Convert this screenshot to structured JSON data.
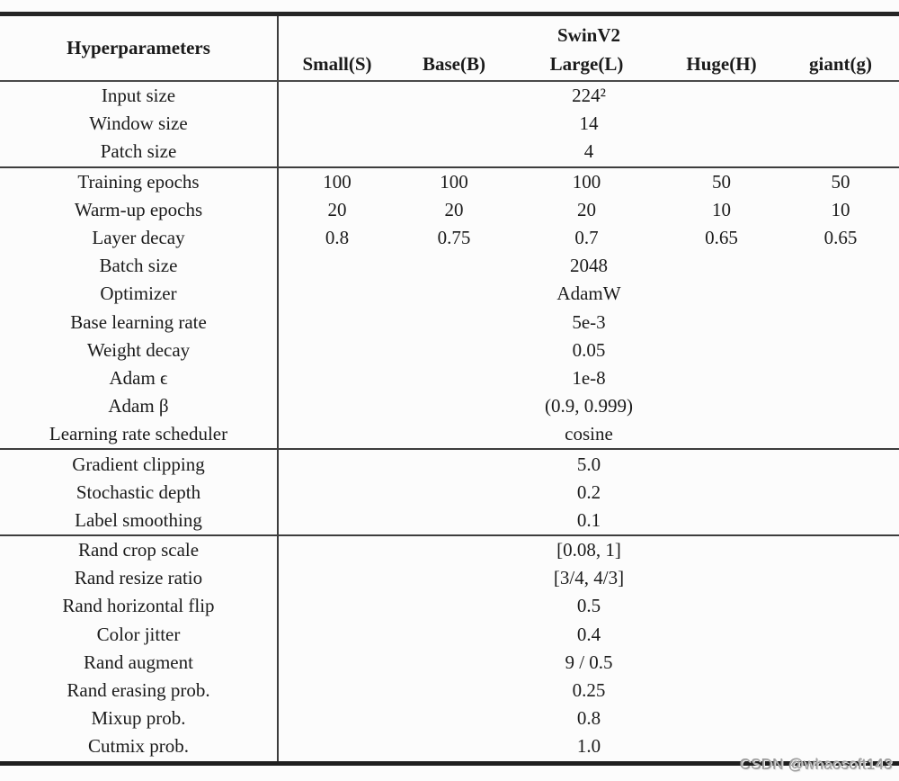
{
  "table": {
    "header": {
      "col0": "Hyperparameters",
      "group": "SwinV2",
      "columns": [
        "Small(S)",
        "Base(B)",
        "Large(L)",
        "Huge(H)",
        "giant(g)"
      ]
    },
    "sections": [
      {
        "rows": [
          {
            "label": "Input size",
            "span": "224²"
          },
          {
            "label": "Window size",
            "span": "14"
          },
          {
            "label": "Patch size",
            "span": "4"
          }
        ]
      },
      {
        "rows": [
          {
            "label": "Training epochs",
            "values": [
              "100",
              "100",
              "100",
              "50",
              "50"
            ]
          },
          {
            "label": "Warm-up epochs",
            "values": [
              "20",
              "20",
              "20",
              "10",
              "10"
            ]
          },
          {
            "label": "Layer decay",
            "values": [
              "0.8",
              "0.75",
              "0.7",
              "0.65",
              "0.65"
            ]
          },
          {
            "label": "Batch size",
            "span": "2048"
          },
          {
            "label": "Optimizer",
            "span": "AdamW"
          },
          {
            "label": "Base learning rate",
            "span": "5e-3"
          },
          {
            "label": "Weight decay",
            "span": "0.05"
          },
          {
            "label": "Adam ϵ",
            "span": "1e-8"
          },
          {
            "label": "Adam β",
            "span": "(0.9, 0.999)"
          },
          {
            "label": "Learning rate scheduler",
            "span": "cosine"
          }
        ]
      },
      {
        "rows": [
          {
            "label": "Gradient clipping",
            "span": "5.0"
          },
          {
            "label": "Stochastic depth",
            "span": "0.2"
          },
          {
            "label": "Label smoothing",
            "span": "0.1"
          }
        ]
      },
      {
        "rows": [
          {
            "label": "Rand crop scale",
            "span": "[0.08, 1]"
          },
          {
            "label": "Rand resize ratio",
            "span": "[3/4, 4/3]"
          },
          {
            "label": "Rand horizontal flip",
            "span": "0.5"
          },
          {
            "label": "Color jitter",
            "span": "0.4"
          },
          {
            "label": "Rand augment",
            "span": "9 / 0.5"
          },
          {
            "label": "Rand erasing prob.",
            "span": "0.25"
          },
          {
            "label": "Mixup prob.",
            "span": "0.8"
          },
          {
            "label": "Cutmix prob.",
            "span": "1.0"
          }
        ]
      }
    ]
  },
  "watermark": "CSDN @whaosoft143"
}
